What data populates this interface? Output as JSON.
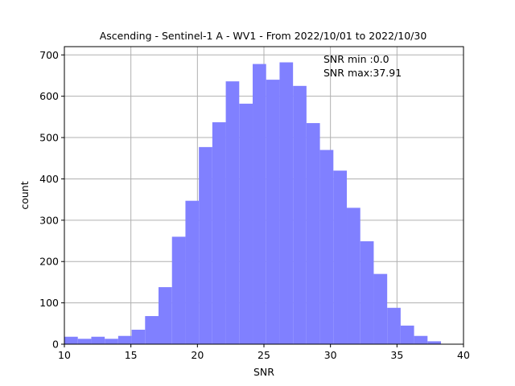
{
  "chart_data": {
    "type": "bar",
    "title": "Ascending - Sentinel-1 A - WV1 - From 2022/10/01 to 2022/10/30",
    "xlabel": "SNR",
    "ylabel": "count",
    "xlim": [
      10,
      40
    ],
    "ylim": [
      0,
      720
    ],
    "xticks": [
      10,
      15,
      20,
      25,
      30,
      35,
      40
    ],
    "yticks": [
      0,
      100,
      200,
      300,
      400,
      500,
      600,
      700
    ],
    "grid": true,
    "bar_color": "#8080ff",
    "grid_color": "#b0b0b0",
    "bin_edges": [
      10.0,
      11.011,
      12.022,
      13.033,
      14.044,
      15.055,
      16.066,
      17.077,
      18.088,
      19.099,
      20.11,
      21.121,
      22.132,
      23.143,
      24.154,
      25.165,
      26.176,
      27.187,
      28.198,
      29.209,
      30.22,
      31.231,
      32.242,
      33.253,
      34.264,
      35.275,
      36.286,
      37.297,
      38.308
    ],
    "counts": [
      18,
      13,
      18,
      13,
      20,
      35,
      68,
      138,
      260,
      347,
      477,
      537,
      636,
      582,
      678,
      640,
      682,
      625,
      535,
      470,
      420,
      330,
      249,
      170,
      88,
      45,
      20,
      7
    ],
    "annotations": [
      "SNR min :0.0",
      "SNR max:37.91"
    ]
  }
}
